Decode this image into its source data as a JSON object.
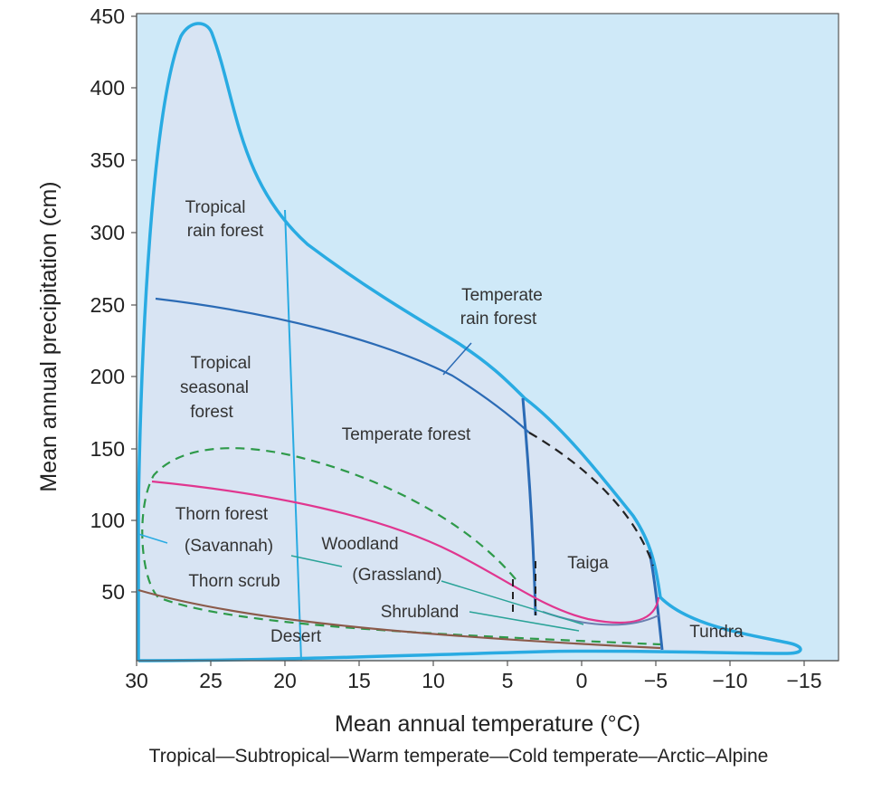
{
  "diagram": {
    "xlabel": "Mean annual temperature (°C)",
    "ylabel": "Mean annual precipitation  (cm)",
    "climate_zones_caption": "Tropical—Subtropical—Warm temperate—Cold temperate—Arctic–Alpine",
    "x_ticks": [
      "30",
      "25",
      "20",
      "15",
      "10",
      "5",
      "0",
      "−5",
      "−10",
      "−15"
    ],
    "y_ticks": [
      "50",
      "100",
      "150",
      "200",
      "250",
      "300",
      "350",
      "400",
      "450"
    ],
    "colors": {
      "plot_background": "#cfe9f8",
      "biome_region_fill": "#d8e4f3",
      "outline": "#29abe2",
      "boundary_dark_blue": "#2b6bb5",
      "woodland_line": "#e0368f",
      "dashed_green": "#2e9a4a",
      "desert_line": "#8b5a4a",
      "dashed_black": "#222222"
    },
    "biomes": {
      "tropical_rain_forest": [
        "Tropical",
        "rain forest"
      ],
      "temperate_rain_forest": [
        "Temperate",
        "rain forest"
      ],
      "tropical_seasonal_forest": [
        "Tropical",
        "seasonal",
        "forest"
      ],
      "temperate_forest": "Temperate forest",
      "thorn_forest": "Thorn forest",
      "savannah": "(Savannah)",
      "woodland": "Woodland",
      "grassland": "(Grassland)",
      "taiga": "Taiga",
      "thorn_scrub": "Thorn scrub",
      "shrubland": "Shrubland",
      "desert": "Desert",
      "tundra": "Tundra"
    }
  }
}
